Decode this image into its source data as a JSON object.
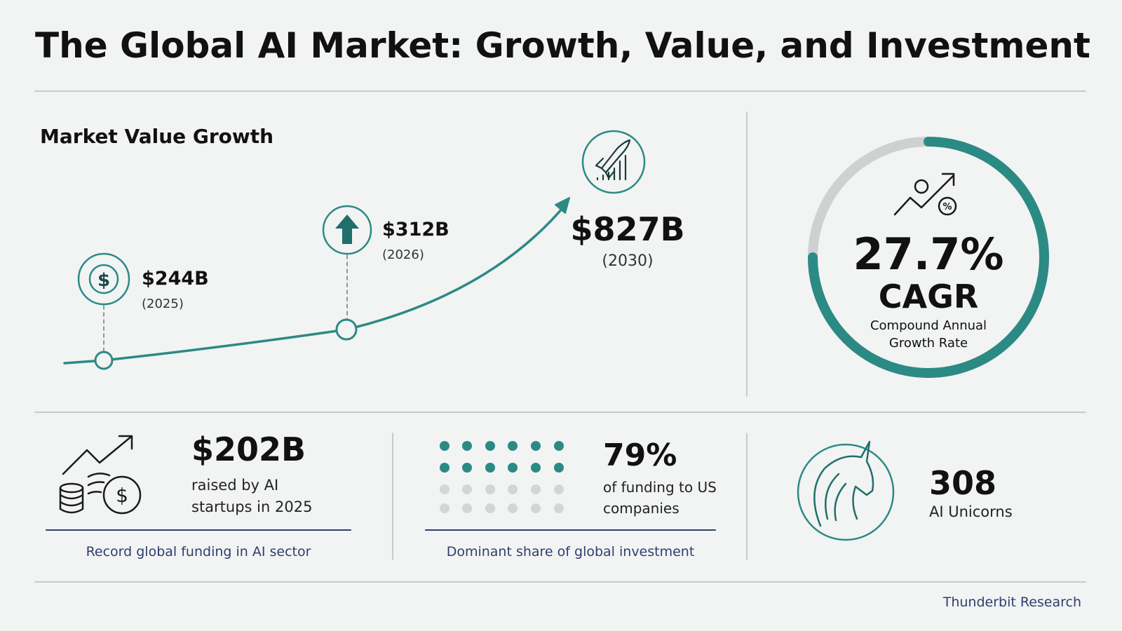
{
  "title": "The Global AI Market: Growth, Value, and Investment",
  "growth": {
    "heading": "Market Value Growth",
    "points": [
      {
        "value": "$244B",
        "year": "(2025)"
      },
      {
        "value": "$312B",
        "year": "(2026)"
      },
      {
        "value": "$827B",
        "year": "(2030)"
      }
    ]
  },
  "cagr": {
    "value": "27.7%",
    "label": "CAGR",
    "description": "Compound Annual Growth Rate"
  },
  "stats": [
    {
      "value": "$202B",
      "text": "raised by AI startups in 2025",
      "caption": "Record global funding in AI sector"
    },
    {
      "value": "79%",
      "text": "of funding to US companies",
      "caption": "Dominant share of global investment"
    },
    {
      "value": "308",
      "text": "AI Unicorns"
    }
  ],
  "footer": "Thunderbit Research"
}
